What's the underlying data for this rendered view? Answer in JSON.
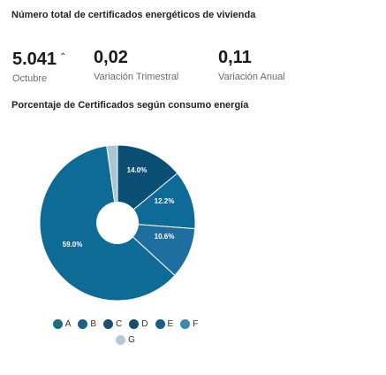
{
  "header": {
    "title": "Número total de certificados energéticos de vivienda"
  },
  "kpis": [
    {
      "value": "5.041",
      "trend_icon": "trend-up-icon",
      "trend_glyph": "⌃",
      "label": "Octubre"
    },
    {
      "value": "0,02",
      "label": "Variación Trimestral"
    },
    {
      "value": "0,11",
      "label": "Variación Anual"
    }
  ],
  "chart_data": {
    "type": "pie",
    "title": "Porcentaje de Certificados según consumo energía",
    "categories": [
      "A",
      "B",
      "C",
      "D",
      "E",
      "F",
      "G"
    ],
    "values": [
      null,
      null,
      null,
      14.0,
      12.2,
      10.6,
      59.0
    ],
    "data_labels": {
      "D": "14.0%",
      "E": "12.2%",
      "F": "10.6%",
      "G": "59.0%"
    },
    "colors": {
      "A": "#0f5a7a",
      "B": "#135f80",
      "C": "#0c4a68",
      "D": "#0b4f75",
      "E": "#0e6a97",
      "F": "#1e6fa0",
      "G": "#aac5d6",
      "bulk": "#0d6b95"
    },
    "legend": {
      "placement": "bottom",
      "items": [
        {
          "label": "A",
          "color": "#1f6a86"
        },
        {
          "label": "B",
          "color": "#1e5f85"
        },
        {
          "label": "C",
          "color": "#1b4f6e"
        },
        {
          "label": "D",
          "color": "#1a4d6d"
        },
        {
          "label": "E",
          "color": "#1a5d86"
        },
        {
          "label": "F",
          "color": "#3f87b1"
        },
        {
          "label": "G",
          "color": "#b3c9d6"
        }
      ]
    },
    "hole": true
  }
}
